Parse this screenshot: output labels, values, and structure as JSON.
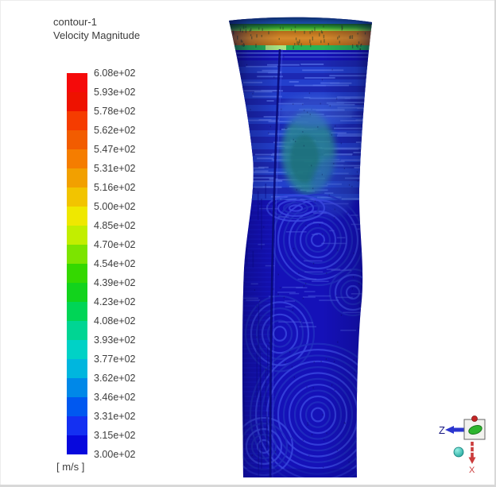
{
  "title": {
    "line1": "contour-1",
    "line2": "Velocity Magnitude"
  },
  "legend": {
    "labels": [
      "6.08e+02",
      "5.93e+02",
      "5.78e+02",
      "5.62e+02",
      "5.47e+02",
      "5.31e+02",
      "5.16e+02",
      "5.00e+02",
      "4.85e+02",
      "4.70e+02",
      "4.54e+02",
      "4.39e+02",
      "4.23e+02",
      "4.08e+02",
      "3.93e+02",
      "3.77e+02",
      "3.62e+02",
      "3.46e+02",
      "3.31e+02",
      "3.15e+02",
      "3.00e+02"
    ],
    "unit": "[ m/s ]",
    "band_colors": [
      "#f50a0a",
      "#ee1200",
      "#f53c00",
      "#f25c00",
      "#f57d00",
      "#f2a000",
      "#f2c400",
      "#efe800",
      "#c2ee00",
      "#7ce400",
      "#34d800",
      "#12d31c",
      "#00d556",
      "#00d593",
      "#00d2c6",
      "#00b6de",
      "#0088e8",
      "#0058f0",
      "#1430f2",
      "#0708dd"
    ]
  },
  "figure": {
    "label": "velocity magnitude contour surface",
    "colors": {
      "base": "#1511b8",
      "deep": "#0d0a96",
      "rim_top": "#081f52",
      "rim_bottom": "#1d55b0",
      "green_top": "#14522a",
      "green_mid": "#2f9e2e",
      "green_bottom": "#8fd140",
      "orange_top": "#b06a19",
      "orange_mid": "#d68a2c",
      "orange_bottom": "#c07016",
      "teal_stripe": "#27b457",
      "mint_patch": "#a8e381",
      "flare_row_a": "#1c2ab2",
      "flare_row_b": "#2442cd",
      "dash_light": "#5572e8",
      "arc_light": "#3a49e0",
      "arc_dark": "#2030c0",
      "teal_blob": "#2a8a8c",
      "crease": "#080a78"
    }
  },
  "triad": {
    "z_label": "Z",
    "x_label": "X",
    "z_color": "#2a35cf",
    "x_color": "#cb3b3b",
    "cube_color": "#f2f2ee",
    "y_ellipse_color": "#2db52d",
    "sphere_color": "#2cc4bc"
  },
  "chart_data": {
    "type": "heatmap",
    "title": "contour-1 — Velocity Magnitude",
    "unit": "m/s",
    "scale_levels": [
      608,
      593,
      578,
      562,
      547,
      531,
      516,
      500,
      485,
      470,
      454,
      439,
      423,
      408,
      393,
      377,
      362,
      346,
      331,
      315,
      300
    ],
    "range": [
      300,
      608
    ],
    "legend_position": "left",
    "colormap": "rainbow (red=high 608 m/s, blue=low 300 m/s), 20 discrete bands",
    "description": "3D contour of velocity magnitude on a flared nozzle/column geometry; a high-velocity ring (~450–560 m/s, green/orange) near the flared top rim, with the remaining column surface near 300–330 m/s (deep blue) showing banded fingerprint-like contour patterns"
  }
}
